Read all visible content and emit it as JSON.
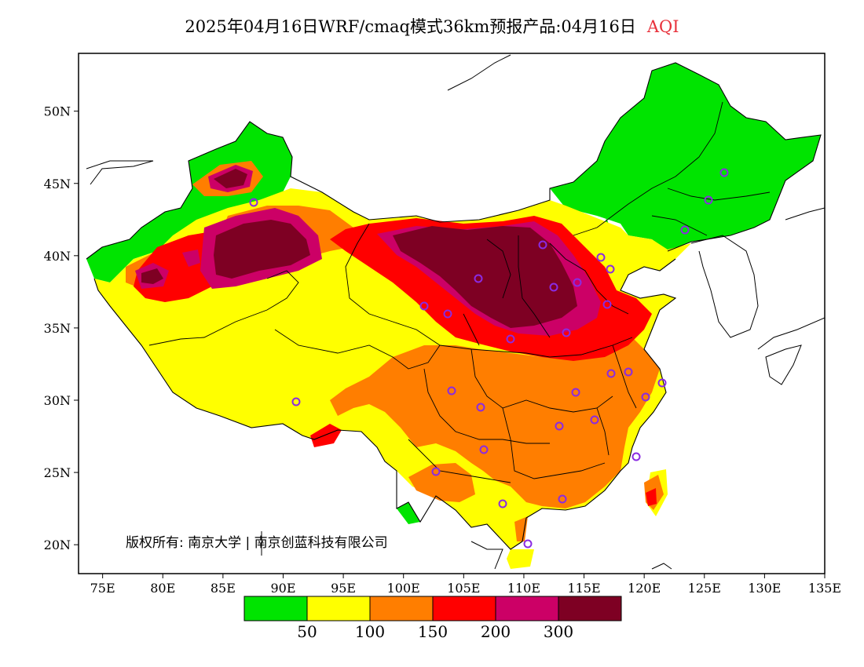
{
  "title": {
    "main": "2025年04月16日WRF/cmaq模式36km预报产品:04月16日",
    "variable": "AQI",
    "variable_color": "#e8303a"
  },
  "map": {
    "extent": {
      "lon": [
        73,
        135
      ],
      "lat": [
        18,
        54
      ]
    },
    "lon_ticks": [
      "75E",
      "80E",
      "85E",
      "90E",
      "95E",
      "100E",
      "105E",
      "110E",
      "115E",
      "120E",
      "125E",
      "130E",
      "135E"
    ],
    "lat_ticks": [
      "20N",
      "25N",
      "30N",
      "35N",
      "40N",
      "45N",
      "50N"
    ],
    "copyright": "版权所有: 南京大学 | 南京创蓝科技有限公司",
    "city_marker_color": "#8a2be2"
  },
  "legend": {
    "colors": [
      "#00e400",
      "#ffff00",
      "#ff7e00",
      "#ff0000",
      "#cc0066",
      "#7e0023"
    ],
    "labels": [
      "50",
      "100",
      "150",
      "200",
      "300"
    ]
  }
}
